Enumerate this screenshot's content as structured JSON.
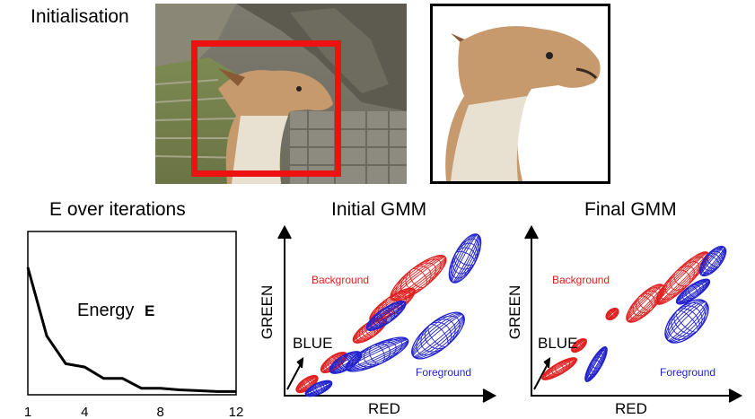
{
  "top": {
    "init_label": "Initialisation"
  },
  "colors": {
    "box": "#ee1111",
    "background_gmm": "#e02020",
    "foreground_gmm": "#2222cc",
    "axis": "#000000"
  },
  "energy_panel": {
    "title": "E over iterations",
    "curve_label": "Energy",
    "curve_symbol": "E",
    "chart_data": {
      "type": "line",
      "x": [
        1,
        2,
        3,
        4,
        5,
        6,
        7,
        8,
        9,
        10,
        11,
        12
      ],
      "y": [
        0.78,
        0.36,
        0.19,
        0.17,
        0.1,
        0.1,
        0.04,
        0.04,
        0.03,
        0.025,
        0.02,
        0.02
      ],
      "xticks": [
        "1",
        "4",
        "8",
        "12"
      ],
      "xlim": [
        1,
        12
      ],
      "ylim": [
        0,
        1
      ]
    }
  },
  "initial_gmm": {
    "title": "Initial GMM",
    "xlabel": "RED",
    "ylabel": "GREEN",
    "zlabel": "BLUE",
    "background_label": "Background",
    "foreground_label": "Foreground"
  },
  "final_gmm": {
    "title": "Final GMM",
    "xlabel": "RED",
    "ylabel": "GREEN",
    "zlabel": "BLUE",
    "background_label": "Background",
    "foreground_label": "Foreground"
  }
}
